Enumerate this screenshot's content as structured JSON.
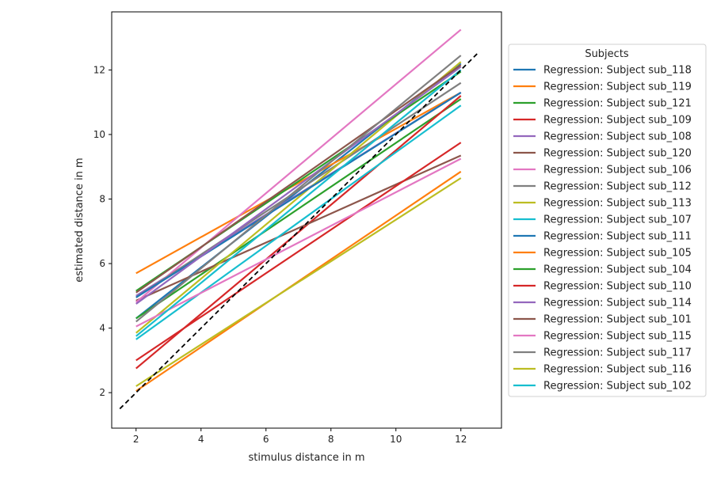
{
  "chart_data": {
    "type": "line",
    "title": "",
    "xlabel": "stimulus distance in m",
    "ylabel": "estimated distance in m",
    "xlim": [
      1.25,
      13.25
    ],
    "ylim": [
      0.9,
      13.8
    ],
    "x_ticks": [
      2,
      4,
      6,
      8,
      10,
      12
    ],
    "y_ticks": [
      2,
      4,
      6,
      8,
      10,
      12
    ],
    "grid": false,
    "legend": {
      "title": "Subjects",
      "placement": "right"
    },
    "reference_line": {
      "x": [
        1.5,
        12.5
      ],
      "y": [
        1.5,
        12.5
      ],
      "style": "dashed",
      "color": "#000000"
    },
    "series": [
      {
        "name": "Regression: Subject sub_118",
        "color": "#1f77b4",
        "x": [
          2,
          12
        ],
        "y": [
          4.3,
          12.2
        ]
      },
      {
        "name": "Regression: Subject sub_119",
        "color": "#ff7f0e",
        "x": [
          2,
          12
        ],
        "y": [
          5.7,
          11.3
        ]
      },
      {
        "name": "Regression: Subject sub_121",
        "color": "#2ca02c",
        "x": [
          2,
          12
        ],
        "y": [
          4.3,
          11.1
        ]
      },
      {
        "name": "Regression: Subject sub_109",
        "color": "#d62728",
        "x": [
          2,
          12
        ],
        "y": [
          2.75,
          11.2
        ]
      },
      {
        "name": "Regression: Subject sub_108",
        "color": "#9467bd",
        "x": [
          2,
          12
        ],
        "y": [
          5.0,
          11.3
        ]
      },
      {
        "name": "Regression: Subject sub_120",
        "color": "#8c564b",
        "x": [
          2,
          12
        ],
        "y": [
          4.85,
          9.35
        ]
      },
      {
        "name": "Regression: Subject sub_106",
        "color": "#e377c2",
        "x": [
          2,
          12
        ],
        "y": [
          4.8,
          13.25
        ]
      },
      {
        "name": "Regression: Subject sub_112",
        "color": "#7f7f7f",
        "x": [
          2,
          12
        ],
        "y": [
          4.95,
          11.6
        ]
      },
      {
        "name": "Regression: Subject sub_113",
        "color": "#bcbd22",
        "x": [
          2,
          12
        ],
        "y": [
          3.85,
          12.25
        ]
      },
      {
        "name": "Regression: Subject sub_107",
        "color": "#17becf",
        "x": [
          2,
          12
        ],
        "y": [
          3.65,
          10.9
        ]
      },
      {
        "name": "Regression: Subject sub_111",
        "color": "#1f77b4",
        "x": [
          2,
          12
        ],
        "y": [
          4.95,
          11.3
        ]
      },
      {
        "name": "Regression: Subject sub_105",
        "color": "#ff7f0e",
        "x": [
          2,
          12
        ],
        "y": [
          2.05,
          8.85
        ]
      },
      {
        "name": "Regression: Subject sub_104",
        "color": "#2ca02c",
        "x": [
          2,
          12
        ],
        "y": [
          5.15,
          11.95
        ]
      },
      {
        "name": "Regression: Subject sub_110",
        "color": "#d62728",
        "x": [
          2,
          12
        ],
        "y": [
          3.0,
          9.75
        ]
      },
      {
        "name": "Regression: Subject sub_114",
        "color": "#9467bd",
        "x": [
          2,
          12
        ],
        "y": [
          4.75,
          12.1
        ]
      },
      {
        "name": "Regression: Subject sub_101",
        "color": "#8c564b",
        "x": [
          2,
          12
        ],
        "y": [
          5.1,
          12.15
        ]
      },
      {
        "name": "Regression: Subject sub_115",
        "color": "#e377c2",
        "x": [
          2,
          12
        ],
        "y": [
          4.05,
          9.25
        ]
      },
      {
        "name": "Regression: Subject sub_117",
        "color": "#7f7f7f",
        "x": [
          2,
          12
        ],
        "y": [
          4.2,
          12.45
        ]
      },
      {
        "name": "Regression: Subject sub_116",
        "color": "#bcbd22",
        "x": [
          2,
          12
        ],
        "y": [
          2.2,
          8.65
        ]
      },
      {
        "name": "Regression: Subject sub_102",
        "color": "#17becf",
        "x": [
          2,
          12
        ],
        "y": [
          3.75,
          12.0
        ]
      }
    ]
  }
}
